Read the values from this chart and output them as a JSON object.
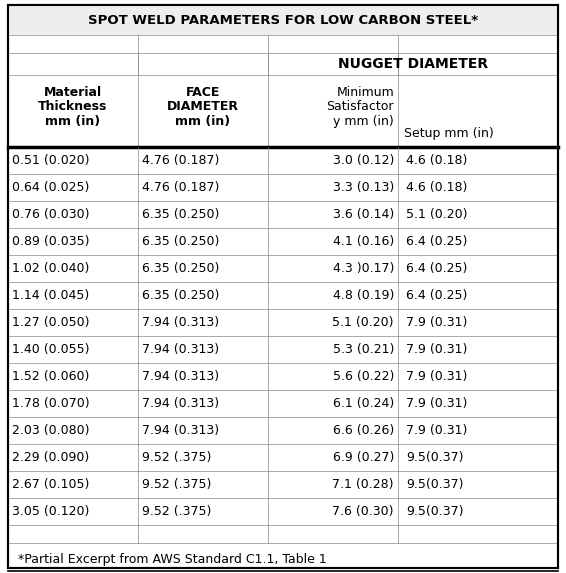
{
  "title": "SPOT WELD PARAMETERS FOR LOW CARBON STEEL*",
  "footnote": "*Partial Excerpt from AWS Standard C1.1, Table 1",
  "rows": [
    [
      "0.51 (0.020)",
      "4.76 (0.187)",
      "3.0 (0.12)",
      "4.6 (0.18)"
    ],
    [
      "0.64 (0.025)",
      "4.76 (0.187)",
      "3.3 (0.13)",
      "4.6 (0.18)"
    ],
    [
      "0.76 (0.030)",
      "6.35 (0.250)",
      "3.6 (0.14)",
      "5.1 (0.20)"
    ],
    [
      "0.89 (0.035)",
      "6.35 (0.250)",
      "4.1 (0.16)",
      "6.4 (0.25)"
    ],
    [
      "1.02 (0.040)",
      "6.35 (0.250)",
      "4.3 )0.17)",
      "6.4 (0.25)"
    ],
    [
      "1.14 (0.045)",
      "6.35 (0.250)",
      "4.8 (0.19)",
      "6.4 (0.25)"
    ],
    [
      "1.27 (0.050)",
      "7.94 (0.313)",
      "5.1 (0.20)",
      "7.9 (0.31)"
    ],
    [
      "1.40 (0.055)",
      "7.94 (0.313)",
      "5.3 (0.21)",
      "7.9 (0.31)"
    ],
    [
      "1.52 (0.060)",
      "7.94 (0.313)",
      "5.6 (0.22)",
      "7.9 (0.31)"
    ],
    [
      "1.78 (0.070)",
      "7.94 (0.313)",
      "6.1 (0.24)",
      "7.9 (0.31)"
    ],
    [
      "2.03 (0.080)",
      "7.94 (0.313)",
      "6.6 (0.26)",
      "7.9 (0.31)"
    ],
    [
      "2.29 (0.090)",
      "9.52 (.375)",
      "6.9 (0.27)",
      "9.5(0.37)"
    ],
    [
      "2.67 (0.105)",
      "9.52 (.375)",
      "7.1 (0.28)",
      "9.5(0.37)"
    ],
    [
      "3.05 (0.120)",
      "9.52 (.375)",
      "7.6 (0.30)",
      "9.5(0.37)"
    ]
  ],
  "background": "#ffffff",
  "title_bg": "#eeeeee",
  "line_color": "#888888",
  "thick_line_color": "#000000",
  "text_color": "#000000"
}
